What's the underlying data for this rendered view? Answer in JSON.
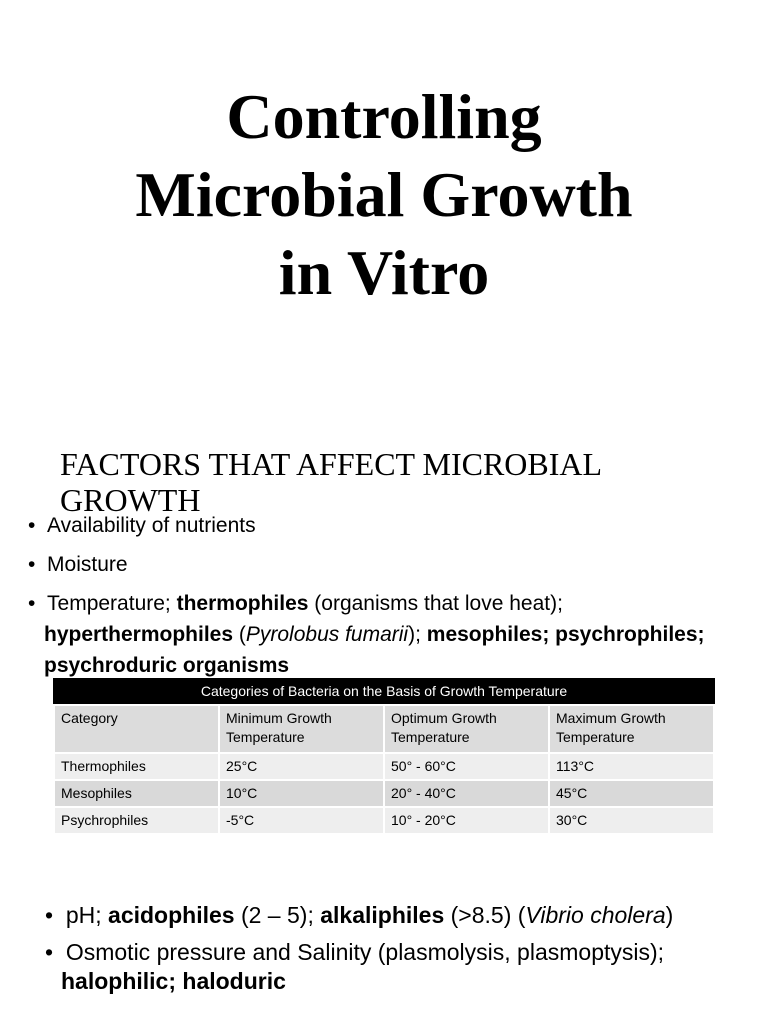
{
  "title": [
    "Controlling",
    "Microbial Growth",
    "in Vitro"
  ],
  "subheading": "FACTORS THAT AFFECT MICROBIAL GROWTH",
  "bullets": [
    [
      "Availability of nutrients"
    ],
    [
      "Moisture"
    ],
    [
      "Temperature; ",
      "thermophiles",
      " (organisms that love heat); ",
      "hyperthermophiles",
      " (",
      "Pyrolobus fumarii",
      "); ",
      "mesophiles; psychrophiles; psychroduric organisms"
    ]
  ],
  "table": {
    "caption": "Categories of Bacteria on the Basis of Growth Temperature",
    "header": [
      "Category",
      "Minimum Growth Temperature",
      "Optimum Growth Temperature",
      "Maximum Growth Temperature"
    ],
    "rows": [
      [
        "Thermophiles",
        "25°C",
        "50° - 60°C",
        "113°C"
      ],
      [
        "Mesophiles",
        "10°C",
        "20° - 40°C",
        "45°C"
      ],
      [
        "Psychrophiles",
        "-5°C",
        "10° - 20°C",
        "30°C"
      ]
    ]
  },
  "bullets_2": [
    [
      "pH; ",
      "acidophiles",
      " (2 – 5); ",
      "alkaliphiles",
      " (>8.5) (",
      "Vibrio cholera",
      ")"
    ],
    [
      "Osmotic pressure and Salinity (plasmolysis, plasmoptysis); ",
      "halophilic; haloduric"
    ]
  ]
}
